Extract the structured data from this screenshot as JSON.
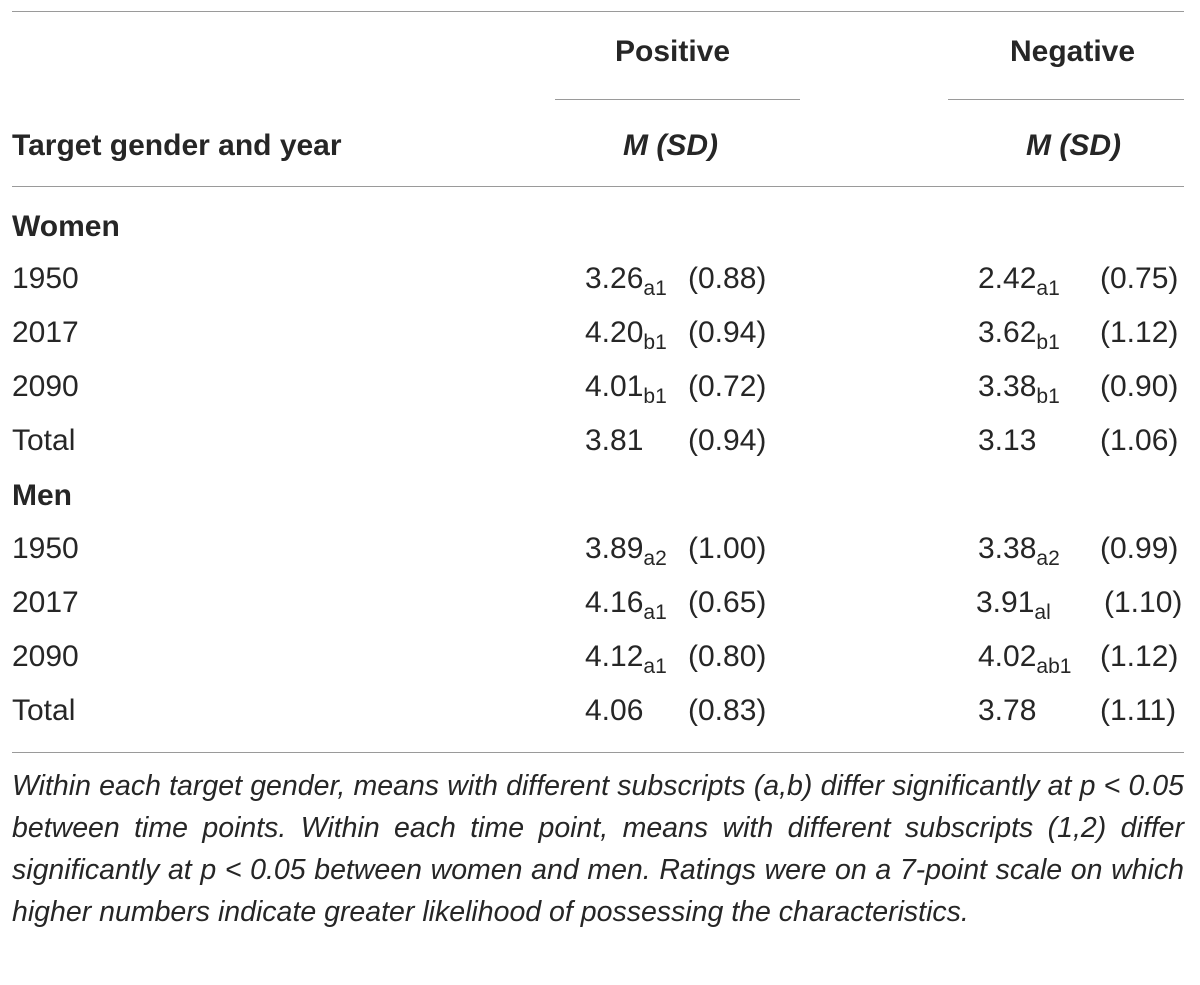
{
  "header": {
    "row_label": "Target gender and year",
    "positive": "Positive",
    "negative": "Negative",
    "positive_stat": "M (SD)",
    "negative_stat": "M (SD)"
  },
  "groups": [
    {
      "label": "Women",
      "rows": [
        {
          "year": "1950",
          "pos_mean": "3.26",
          "pos_sub": "a1",
          "pos_sd": "(0.88)",
          "neg_mean": "2.42",
          "neg_sub": "a1",
          "neg_sd": "(0.75)"
        },
        {
          "year": "2017",
          "pos_mean": "4.20",
          "pos_sub": "b1",
          "pos_sd": "(0.94)",
          "neg_mean": "3.62",
          "neg_sub": "b1",
          "neg_sd": "(1.12)"
        },
        {
          "year": "2090",
          "pos_mean": "4.01",
          "pos_sub": "b1",
          "pos_sd": "(0.72)",
          "neg_mean": "3.38",
          "neg_sub": "b1",
          "neg_sd": "(0.90)"
        },
        {
          "year": "Total",
          "pos_mean": "3.81",
          "pos_sub": "",
          "pos_sd": "(0.94)",
          "neg_mean": "3.13",
          "neg_sub": "",
          "neg_sd": "(1.06)"
        }
      ]
    },
    {
      "label": "Men",
      "rows": [
        {
          "year": "1950",
          "pos_mean": "3.89",
          "pos_sub": "a2",
          "pos_sd": "(1.00)",
          "neg_mean": "3.38",
          "neg_sub": "a2",
          "neg_sd": "(0.99)"
        },
        {
          "year": "2017",
          "pos_mean": "4.16",
          "pos_sub": "a1",
          "pos_sd": "(0.65)",
          "neg_mean": "3.91",
          "neg_sub": "al",
          "neg_sd": "(1.10)"
        },
        {
          "year": "2090",
          "pos_mean": "4.12",
          "pos_sub": "a1",
          "pos_sd": "(0.80)",
          "neg_mean": "4.02",
          "neg_sub": "ab1",
          "neg_sd": "(1.12)"
        },
        {
          "year": "Total",
          "pos_mean": "4.06",
          "pos_sub": "",
          "pos_sd": "(0.83)",
          "neg_mean": "3.78",
          "neg_sub": "",
          "neg_sd": "(1.11)"
        }
      ]
    }
  ],
  "note": "Within each target gender, means with different subscripts (a,b) differ significantly at p < 0.05 between time points. Within each time point, means with different subscripts (1,2) differ significantly at p < 0.05 between women and men. Ratings were on a 7-point scale on which higher numbers indicate greater likelihood of possessing the characteristics."
}
